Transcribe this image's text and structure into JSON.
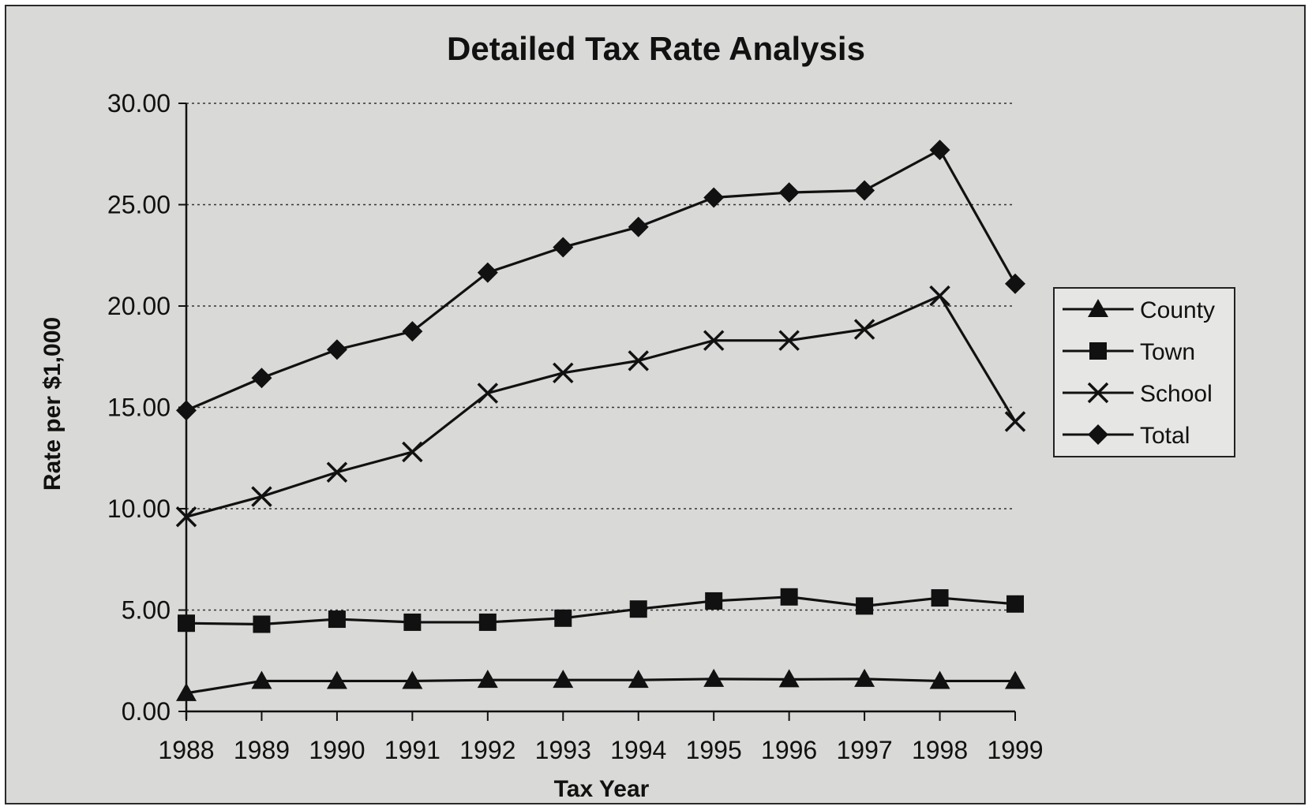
{
  "chart_data": {
    "type": "line",
    "title": "Detailed Tax Rate Analysis",
    "xlabel": "Tax Year",
    "ylabel": "Rate per $1,000",
    "ylim": [
      0,
      30
    ],
    "yticks": [
      "0.00",
      "5.00",
      "10.00",
      "15.00",
      "20.00",
      "25.00",
      "30.00"
    ],
    "grid": "horizontal dotted",
    "legend_position": "right",
    "categories": [
      "1988",
      "1989",
      "1990",
      "1991",
      "1992",
      "1993",
      "1994",
      "1995",
      "1996",
      "1997",
      "1998",
      "1999"
    ],
    "series": [
      {
        "name": "County",
        "marker": "triangle",
        "values": [
          0.9,
          1.5,
          1.5,
          1.5,
          1.55,
          1.55,
          1.55,
          1.6,
          1.58,
          1.6,
          1.5,
          1.5
        ]
      },
      {
        "name": "Town",
        "marker": "square",
        "values": [
          4.35,
          4.3,
          4.55,
          4.4,
          4.4,
          4.6,
          5.05,
          5.45,
          5.65,
          5.2,
          5.6,
          5.3
        ]
      },
      {
        "name": "School",
        "marker": "x",
        "values": [
          9.6,
          10.6,
          11.8,
          12.8,
          15.7,
          16.7,
          17.3,
          18.3,
          18.3,
          18.85,
          20.5,
          14.3
        ]
      },
      {
        "name": "Total",
        "marker": "diamond",
        "values": [
          14.85,
          16.45,
          17.85,
          18.75,
          21.65,
          22.9,
          23.9,
          25.35,
          25.6,
          25.7,
          27.7,
          21.1
        ]
      }
    ]
  }
}
